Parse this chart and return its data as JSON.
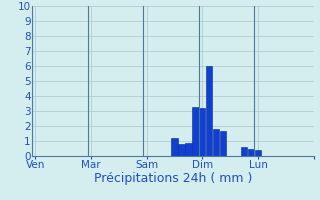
{
  "xlabel": "Précipitations 24h ( mm )",
  "background_color": "#d4eef0",
  "bar_color": "#1040d0",
  "bar_edge_color": "#0a28a0",
  "ylim": [
    0,
    10
  ],
  "yticks": [
    0,
    1,
    2,
    3,
    4,
    5,
    6,
    7,
    8,
    9,
    10
  ],
  "n_bars": 40,
  "bar_heights": [
    0,
    0,
    0,
    0,
    0,
    0,
    0,
    0,
    0,
    0,
    0,
    0,
    0,
    0,
    0,
    0,
    0,
    0,
    0,
    0,
    1.2,
    0.8,
    0.9,
    3.3,
    3.2,
    6.0,
    1.8,
    1.7,
    0,
    0,
    0.6,
    0.5,
    0.4,
    0,
    0,
    0,
    0,
    0,
    0,
    0
  ],
  "day_tick_positions": [
    0,
    8,
    16,
    24,
    32,
    40
  ],
  "day_labels": [
    "Ven",
    "Mar",
    "Sam",
    "Dim",
    "Lun",
    ""
  ],
  "grid_color": "#a8c8cc",
  "xlabel_color": "#2050c0",
  "xlabel_fontsize": 9,
  "tick_label_color": "#2050c0",
  "tick_fontsize": 7.5,
  "ytick_fontsize": 7.5
}
